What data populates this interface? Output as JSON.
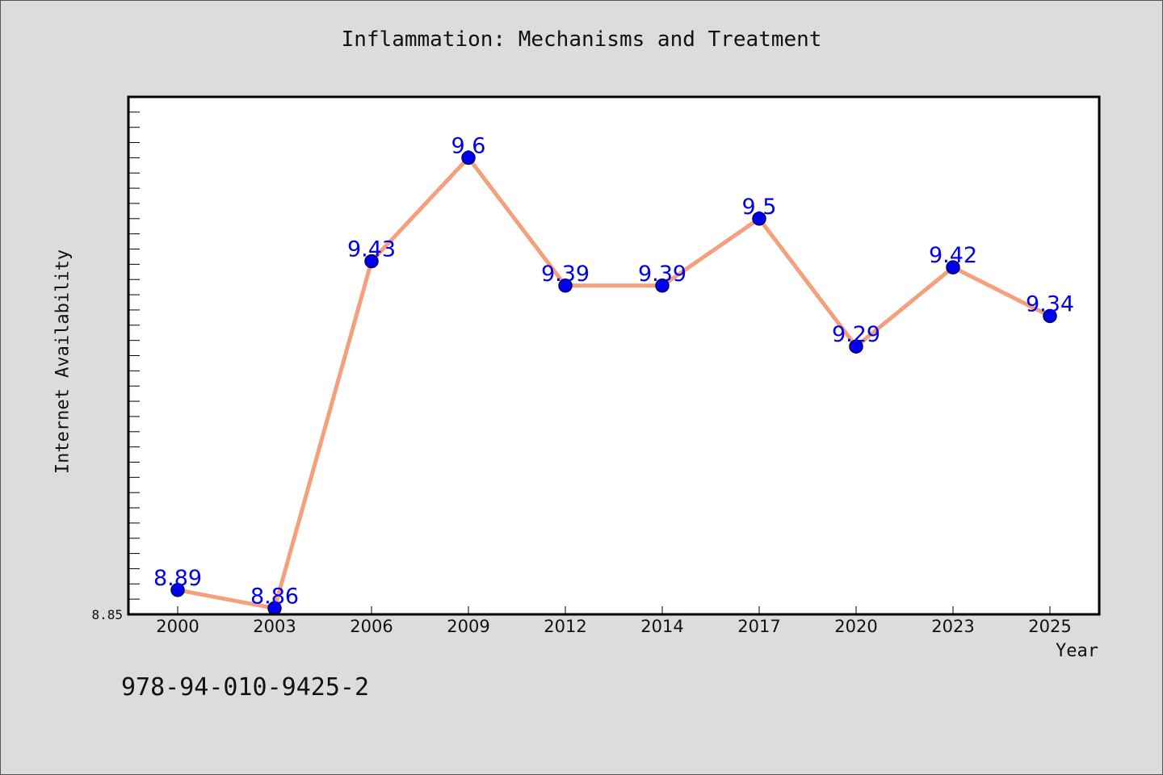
{
  "chart_data": {
    "type": "line",
    "title": "Inflammation: Mechanisms and Treatment",
    "xlabel": "Year",
    "ylabel": "Internet Availability",
    "categories": [
      "2000",
      "2003",
      "2006",
      "2009",
      "2012",
      "2014",
      "2017",
      "2020",
      "2023",
      "2025"
    ],
    "series": [
      {
        "values": [
          8.89,
          8.86,
          9.43,
          9.6,
          9.39,
          9.39,
          9.5,
          9.29,
          9.42,
          9.34
        ],
        "data_labels": [
          "8.89",
          "8.86",
          "9.43",
          "9.6",
          "9.39",
          "9.39",
          "9.5",
          "9.29",
          "9.42",
          "9.34"
        ],
        "line_color": "#f4a07c",
        "marker_color": "#0000ee"
      }
    ],
    "ylim": [
      8.85,
      9.7
    ],
    "ytick_labels": [
      "8.85"
    ],
    "grid": false,
    "legend": "none"
  },
  "footer": {
    "isbn": "978-94-010-9425-2"
  },
  "colors": {
    "background": "#dcdcdc",
    "plot_background": "#ffffff",
    "line": "#f4a07c",
    "marker": "#0000ee",
    "label": "#0000ee"
  }
}
